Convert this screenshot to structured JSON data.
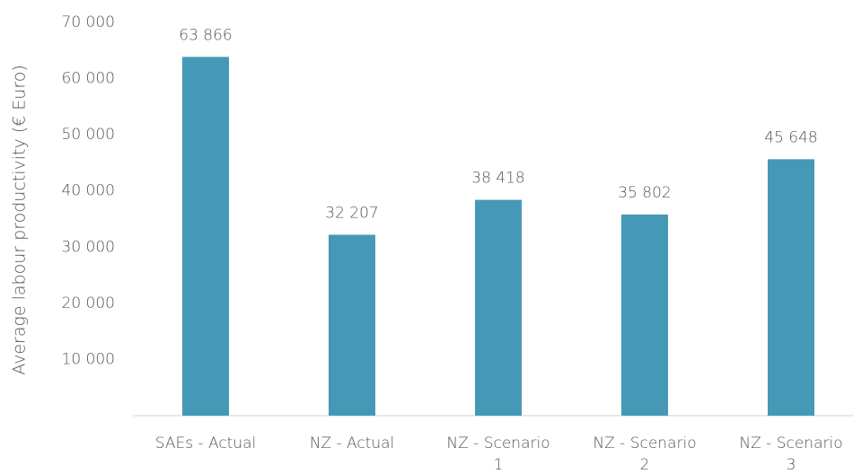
{
  "chart_data": {
    "type": "bar",
    "y_label": "Average labour productivity (€ Euro)",
    "categories": [
      "SAEs - Actual",
      "NZ - Actual",
      "NZ - Scenario 1",
      "NZ - Scenario 2",
      "NZ - Scenario 3"
    ],
    "values": [
      63866,
      32207,
      38418,
      35802,
      45648
    ],
    "value_labels": [
      "63 866",
      "32 207",
      "38 418",
      "35 802",
      "45 648"
    ],
    "color": "#4599b7",
    "ylim": [
      0,
      70000
    ],
    "yticks": [
      {
        "value": 10000,
        "label": "10 000"
      },
      {
        "value": 20000,
        "label": "20 000"
      },
      {
        "value": 30000,
        "label": "30 000"
      },
      {
        "value": 40000,
        "label": "40 000"
      },
      {
        "value": 50000,
        "label": "50 000"
      },
      {
        "value": 60000,
        "label": "60 000"
      },
      {
        "value": 70000,
        "label": "70 000"
      }
    ],
    "grid": false
  }
}
